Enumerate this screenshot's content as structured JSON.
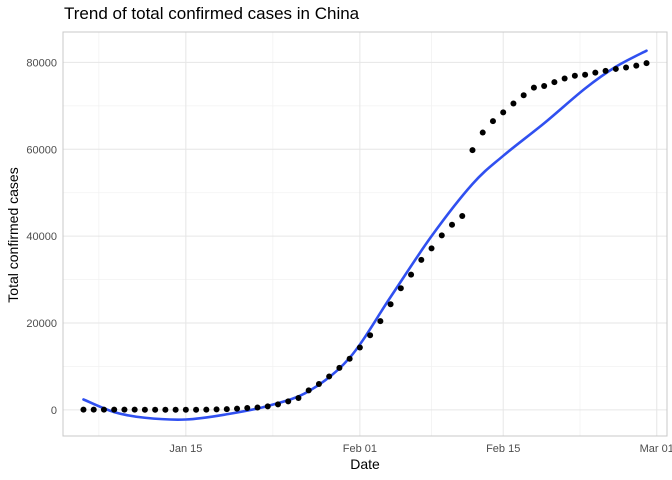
{
  "chart_data": {
    "type": "scatter",
    "title": "Trend of total confirmed cases in China",
    "xlabel": "Date",
    "ylabel": "Total confirmed cases",
    "x_ticks": [
      "Jan 15",
      "Feb 01",
      "Feb 15",
      "Mar 01"
    ],
    "y_ticks": [
      "0",
      "20000",
      "40000",
      "60000",
      "80000"
    ],
    "ylim": [
      -6000,
      87000
    ],
    "xlim": [
      "2020-01-03",
      "2020-03-02"
    ],
    "grid": true,
    "colors": {
      "points": "#000000",
      "trend_line": "#3050f0",
      "grid_major": "#e6e6e6",
      "grid_minor": "#f2f2f2",
      "panel_border": "#c8c8c8"
    },
    "series": [
      {
        "kind": "points",
        "x": [
          "2020-01-05",
          "2020-01-06",
          "2020-01-07",
          "2020-01-08",
          "2020-01-09",
          "2020-01-10",
          "2020-01-11",
          "2020-01-12",
          "2020-01-13",
          "2020-01-14",
          "2020-01-15",
          "2020-01-16",
          "2020-01-17",
          "2020-01-18",
          "2020-01-19",
          "2020-01-20",
          "2020-01-21",
          "2020-01-22",
          "2020-01-23",
          "2020-01-24",
          "2020-01-25",
          "2020-01-26",
          "2020-01-27",
          "2020-01-28",
          "2020-01-29",
          "2020-01-30",
          "2020-01-31",
          "2020-02-01",
          "2020-02-02",
          "2020-02-03",
          "2020-02-04",
          "2020-02-05",
          "2020-02-06",
          "2020-02-07",
          "2020-02-08",
          "2020-02-09",
          "2020-02-10",
          "2020-02-11",
          "2020-02-12",
          "2020-02-13",
          "2020-02-14",
          "2020-02-15",
          "2020-02-16",
          "2020-02-17",
          "2020-02-18",
          "2020-02-19",
          "2020-02-20",
          "2020-02-21",
          "2020-02-22",
          "2020-02-23",
          "2020-02-24",
          "2020-02-25",
          "2020-02-26",
          "2020-02-27",
          "2020-02-28",
          "2020-02-29"
        ],
        "y": [
          59,
          59,
          59,
          59,
          59,
          59,
          41,
          41,
          41,
          41,
          41,
          45,
          62,
          121,
          198,
          291,
          440,
          571,
          830,
          1287,
          1975,
          2744,
          4515,
          5974,
          7711,
          9692,
          11791,
          14380,
          17205,
          20438,
          24324,
          28018,
          31161,
          34546,
          37198,
          40171,
          42638,
          44653,
          59804,
          63851,
          66492,
          68500,
          70548,
          72436,
          74185,
          74576,
          75465,
          76288,
          76936,
          77150,
          77658,
          78064,
          78497,
          78824,
          79251,
          79824
        ]
      },
      {
        "kind": "smooth",
        "x": [
          "2020-01-05",
          "2020-01-08",
          "2020-01-11",
          "2020-01-15",
          "2020-01-19",
          "2020-01-23",
          "2020-01-27",
          "2020-01-31",
          "2020-02-04",
          "2020-02-08",
          "2020-02-12",
          "2020-02-15",
          "2020-02-19",
          "2020-02-23",
          "2020-02-26",
          "2020-02-29"
        ],
        "y": [
          2400,
          -500,
          -1800,
          -2200,
          -1000,
          900,
          4300,
          12000,
          26000,
          40000,
          52000,
          58500,
          66000,
          74000,
          79000,
          82700
        ]
      }
    ]
  }
}
